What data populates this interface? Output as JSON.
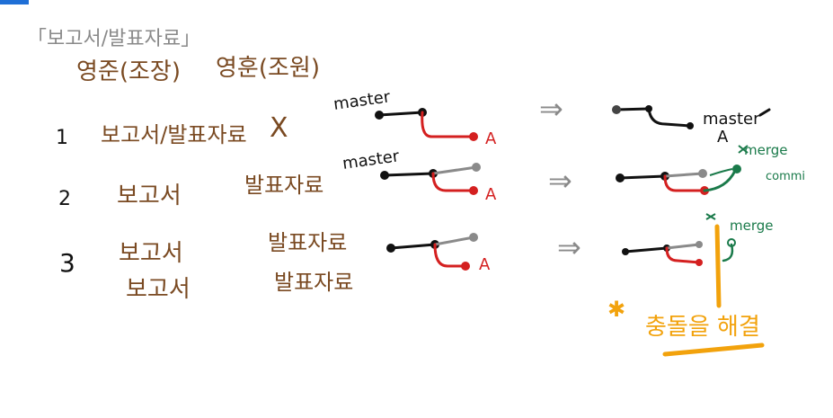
{
  "header": {
    "bracket_title": "「보고서/발표자료」",
    "col_left": "영준(조장)",
    "col_right": "영훈(조원)"
  },
  "rows": [
    {
      "num": "1",
      "left": "보고서/발표자료",
      "right": "X"
    },
    {
      "num": "2",
      "left": "보고서",
      "right": "발표자료"
    },
    {
      "num": "3",
      "left": "보고서",
      "left2": "보고서",
      "right": "발표자료",
      "right2": "발표자료"
    }
  ],
  "diagram": {
    "master_label_1": "master",
    "master_label_2": "master",
    "branch_a": "A",
    "result_master": "master",
    "result_a": "A",
    "merge_commit_1": "merge",
    "merge_commit_2": "commi",
    "merge_3": "merge",
    "arrow": "⇒",
    "conflict_note": "충돌을 해결"
  },
  "colors": {
    "brown": "#7a4a22",
    "red": "#d42020",
    "gray": "#8a8a8a",
    "green": "#1a7a4a",
    "orange": "#f2a20c",
    "black": "#111111"
  }
}
